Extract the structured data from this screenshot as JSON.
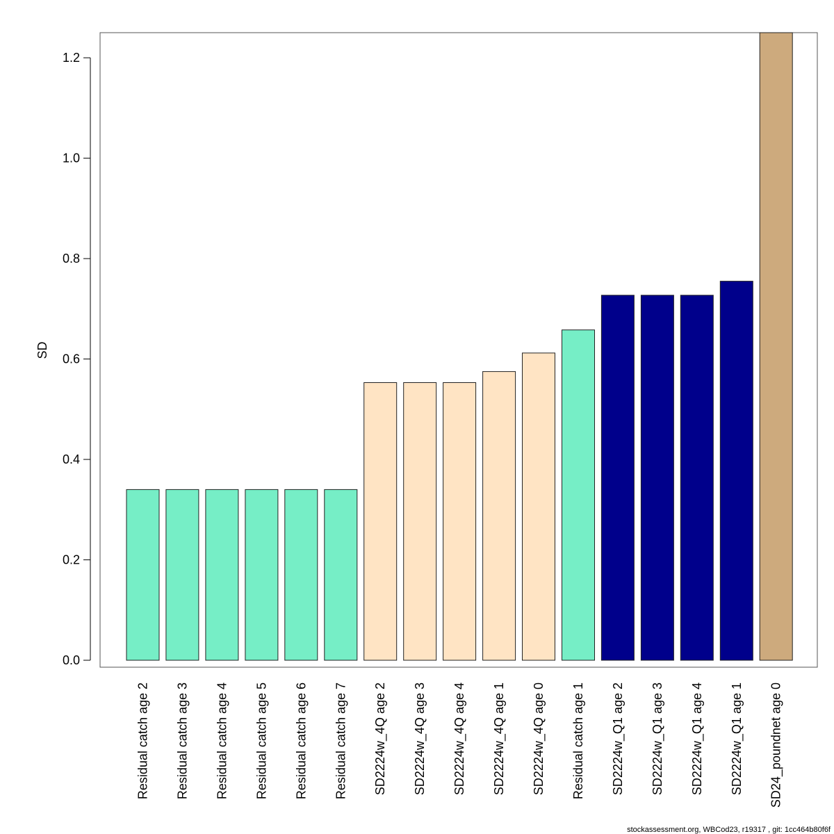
{
  "chart_data": {
    "type": "bar",
    "title": "",
    "xlabel": "",
    "ylabel": "SD",
    "ylim": [
      0,
      1.25
    ],
    "yticks": [
      0.0,
      0.2,
      0.4,
      0.6,
      0.8,
      1.0,
      1.2
    ],
    "ytick_labels": [
      "0.0",
      "0.2",
      "0.4",
      "0.6",
      "0.8",
      "1.0",
      "1.2"
    ],
    "grid": false,
    "legend": "none",
    "categories": [
      "Residual catch age 2",
      "Residual catch age 3",
      "Residual catch age 4",
      "Residual catch age 5",
      "Residual catch age 6",
      "Residual catch age 7",
      "SD2224w_4Q age 2",
      "SD2224w_4Q age 3",
      "SD2224w_4Q age 4",
      "SD2224w_4Q age 1",
      "SD2224w_4Q age 0",
      "Residual catch age 1",
      "SD2224w_Q1 age 2",
      "SD2224w_Q1 age 3",
      "SD2224w_Q1 age 4",
      "SD2224w_Q1 age 1",
      "SD24_poundnet age 0"
    ],
    "values": [
      0.34,
      0.34,
      0.34,
      0.34,
      0.34,
      0.34,
      0.553,
      0.553,
      0.553,
      0.575,
      0.612,
      0.658,
      0.727,
      0.727,
      0.727,
      0.755,
      1.25
    ],
    "bar_colors": [
      "#76EEC6",
      "#76EEC6",
      "#76EEC6",
      "#76EEC6",
      "#76EEC6",
      "#76EEC6",
      "#FFE4C4",
      "#FFE4C4",
      "#FFE4C4",
      "#FFE4C4",
      "#FFE4C4",
      "#76EEC6",
      "#00008B",
      "#00008B",
      "#00008B",
      "#00008B",
      "#CDAA7D"
    ]
  },
  "footer": "stockassessment.org, WBCod23, r19317 , git: 1cc464b80f6f"
}
